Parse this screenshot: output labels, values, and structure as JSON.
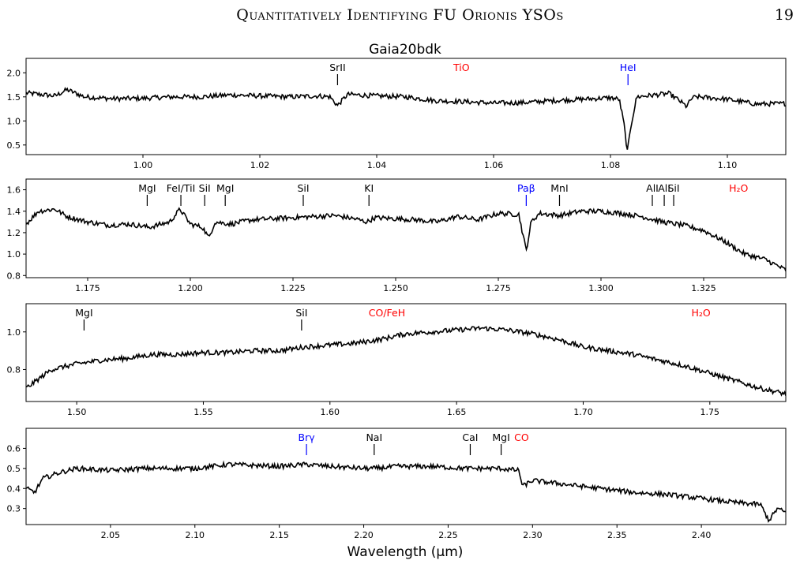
{
  "header": {
    "running_title": "Quantitatively Identifying FU Orionis YSOs",
    "page_number": "19"
  },
  "colors": {
    "black": "#000000",
    "red": "#ff0000",
    "blue": "#0000ff"
  },
  "chart_data": {
    "type": "line",
    "title": "Gaia20bdk",
    "xlabel": "Wavelength (μm)",
    "grid": false,
    "panels": [
      {
        "xlim": [
          0.98,
          1.11
        ],
        "ylim": [
          0.3,
          2.3
        ],
        "xticks": [
          1.0,
          1.02,
          1.04,
          1.06,
          1.08,
          1.1
        ],
        "xtick_labels": [
          "1.00",
          "1.02",
          "1.04",
          "1.06",
          "1.08",
          "1.10"
        ],
        "yticks": [
          0.5,
          1.0,
          1.5,
          2.0
        ],
        "ytick_labels": [
          "0.5",
          "1.0",
          "1.5",
          "2.0"
        ],
        "points": [
          [
            0.98,
            1.58
          ],
          [
            0.985,
            1.52
          ],
          [
            0.987,
            1.65
          ],
          [
            0.99,
            1.5
          ],
          [
            0.995,
            1.46
          ],
          [
            1.0,
            1.47
          ],
          [
            1.005,
            1.5
          ],
          [
            1.01,
            1.5
          ],
          [
            1.015,
            1.54
          ],
          [
            1.02,
            1.52
          ],
          [
            1.025,
            1.5
          ],
          [
            1.03,
            1.52
          ],
          [
            1.032,
            1.5
          ],
          [
            1.0333,
            1.32
          ],
          [
            1.035,
            1.55
          ],
          [
            1.04,
            1.52
          ],
          [
            1.045,
            1.5
          ],
          [
            1.05,
            1.42
          ],
          [
            1.055,
            1.4
          ],
          [
            1.06,
            1.37
          ],
          [
            1.065,
            1.38
          ],
          [
            1.07,
            1.42
          ],
          [
            1.075,
            1.45
          ],
          [
            1.08,
            1.48
          ],
          [
            1.0815,
            1.45
          ],
          [
            1.0823,
            0.95
          ],
          [
            1.0829,
            0.35
          ],
          [
            1.0835,
            0.9
          ],
          [
            1.0845,
            1.5
          ],
          [
            1.09,
            1.57
          ],
          [
            1.0915,
            1.45
          ],
          [
            1.093,
            1.3
          ],
          [
            1.094,
            1.48
          ],
          [
            1.095,
            1.5
          ],
          [
            1.1,
            1.45
          ],
          [
            1.105,
            1.35
          ],
          [
            1.11,
            1.36
          ]
        ],
        "lines": [
          {
            "label": "SrII",
            "x": 1.0333,
            "color": "black"
          },
          {
            "label": "HeI",
            "x": 1.083,
            "color": "blue"
          }
        ],
        "bands": [
          {
            "label": "TiO",
            "x": 1.0545,
            "color": "red"
          }
        ]
      },
      {
        "xlim": [
          1.16,
          1.345
        ],
        "ylim": [
          0.78,
          1.7
        ],
        "xticks": [
          1.175,
          1.2,
          1.225,
          1.25,
          1.275,
          1.3,
          1.325
        ],
        "xtick_labels": [
          "1.175",
          "1.200",
          "1.225",
          "1.250",
          "1.275",
          "1.300",
          "1.325"
        ],
        "yticks": [
          0.8,
          1.0,
          1.2,
          1.4,
          1.6
        ],
        "ytick_labels": [
          "0.8",
          "1.0",
          "1.2",
          "1.4",
          "1.6"
        ],
        "points": [
          [
            1.16,
            1.28
          ],
          [
            1.163,
            1.4
          ],
          [
            1.167,
            1.42
          ],
          [
            1.17,
            1.35
          ],
          [
            1.175,
            1.3
          ],
          [
            1.18,
            1.27
          ],
          [
            1.185,
            1.28
          ],
          [
            1.19,
            1.25
          ],
          [
            1.195,
            1.3
          ],
          [
            1.1975,
            1.42
          ],
          [
            1.2,
            1.28
          ],
          [
            1.203,
            1.25
          ],
          [
            1.2045,
            1.15
          ],
          [
            1.206,
            1.3
          ],
          [
            1.21,
            1.28
          ],
          [
            1.215,
            1.32
          ],
          [
            1.22,
            1.33
          ],
          [
            1.225,
            1.34
          ],
          [
            1.23,
            1.35
          ],
          [
            1.235,
            1.36
          ],
          [
            1.24,
            1.33
          ],
          [
            1.243,
            1.3
          ],
          [
            1.245,
            1.34
          ],
          [
            1.25,
            1.33
          ],
          [
            1.255,
            1.32
          ],
          [
            1.26,
            1.3
          ],
          [
            1.265,
            1.35
          ],
          [
            1.27,
            1.32
          ],
          [
            1.275,
            1.38
          ],
          [
            1.28,
            1.37
          ],
          [
            1.2818,
            1.03
          ],
          [
            1.283,
            1.3
          ],
          [
            1.285,
            1.38
          ],
          [
            1.29,
            1.36
          ],
          [
            1.295,
            1.4
          ],
          [
            1.3,
            1.4
          ],
          [
            1.305,
            1.38
          ],
          [
            1.31,
            1.35
          ],
          [
            1.315,
            1.3
          ],
          [
            1.32,
            1.27
          ],
          [
            1.325,
            1.22
          ],
          [
            1.33,
            1.12
          ],
          [
            1.335,
            1.0
          ],
          [
            1.34,
            0.95
          ],
          [
            1.345,
            0.85
          ]
        ],
        "lines": [
          {
            "label": "MgI",
            "x": 1.1895,
            "color": "black"
          },
          {
            "label": "FeI/TiI",
            "x": 1.1977,
            "color": "black"
          },
          {
            "label": "SiI",
            "x": 1.2035,
            "color": "black"
          },
          {
            "label": "MgI",
            "x": 1.2085,
            "color": "black"
          },
          {
            "label": "SiI",
            "x": 1.2275,
            "color": "black"
          },
          {
            "label": "KI",
            "x": 1.2435,
            "color": "black"
          },
          {
            "label": "Paβ",
            "x": 1.2818,
            "color": "blue"
          },
          {
            "label": "MnI",
            "x": 1.2899,
            "color": "black"
          },
          {
            "label": "AlI",
            "x": 1.3125,
            "color": "black"
          },
          {
            "label": "AlI",
            "x": 1.3154,
            "color": "black"
          },
          {
            "label": "SiI",
            "x": 1.3177,
            "color": "black"
          }
        ],
        "bands": [
          {
            "label": "H₂O",
            "x": 1.3335,
            "color": "red"
          }
        ]
      },
      {
        "xlim": [
          1.48,
          1.78
        ],
        "ylim": [
          0.63,
          1.15
        ],
        "xticks": [
          1.5,
          1.55,
          1.6,
          1.65,
          1.7,
          1.75
        ],
        "xtick_labels": [
          "1.50",
          "1.55",
          "1.60",
          "1.65",
          "1.70",
          "1.75"
        ],
        "yticks": [
          0.8,
          1.0
        ],
        "ytick_labels": [
          "0.8",
          "1.0"
        ],
        "points": [
          [
            1.48,
            0.7
          ],
          [
            1.49,
            0.8
          ],
          [
            1.5,
            0.83
          ],
          [
            1.51,
            0.85
          ],
          [
            1.52,
            0.86
          ],
          [
            1.53,
            0.88
          ],
          [
            1.54,
            0.88
          ],
          [
            1.55,
            0.89
          ],
          [
            1.56,
            0.89
          ],
          [
            1.57,
            0.9
          ],
          [
            1.58,
            0.9
          ],
          [
            1.59,
            0.92
          ],
          [
            1.6,
            0.93
          ],
          [
            1.61,
            0.94
          ],
          [
            1.62,
            0.96
          ],
          [
            1.63,
            0.99
          ],
          [
            1.64,
            1.0
          ],
          [
            1.65,
            1.01
          ],
          [
            1.66,
            1.02
          ],
          [
            1.67,
            1.01
          ],
          [
            1.68,
            0.99
          ],
          [
            1.69,
            0.96
          ],
          [
            1.7,
            0.92
          ],
          [
            1.71,
            0.9
          ],
          [
            1.72,
            0.88
          ],
          [
            1.73,
            0.85
          ],
          [
            1.74,
            0.82
          ],
          [
            1.75,
            0.78
          ],
          [
            1.76,
            0.74
          ],
          [
            1.77,
            0.7
          ],
          [
            1.78,
            0.67
          ]
        ],
        "lines": [
          {
            "label": "MgI",
            "x": 1.5029,
            "color": "black"
          },
          {
            "label": "SiI",
            "x": 1.5888,
            "color": "black"
          }
        ],
        "bands": [
          {
            "label": "CO/FeH",
            "x": 1.6225,
            "color": "red"
          },
          {
            "label": "H₂O",
            "x": 1.7465,
            "color": "red"
          }
        ]
      },
      {
        "xlim": [
          2.0,
          2.45
        ],
        "ylim": [
          0.22,
          0.7
        ],
        "xticks": [
          2.05,
          2.1,
          2.15,
          2.2,
          2.25,
          2.3,
          2.35,
          2.4
        ],
        "xtick_labels": [
          "2.05",
          "2.10",
          "2.15",
          "2.20",
          "2.25",
          "2.30",
          "2.35",
          "2.40"
        ],
        "yticks": [
          0.3,
          0.4,
          0.5,
          0.6
        ],
        "ytick_labels": [
          "0.3",
          "0.4",
          "0.5",
          "0.6"
        ],
        "points": [
          [
            2.0,
            0.4
          ],
          [
            2.005,
            0.38
          ],
          [
            2.01,
            0.45
          ],
          [
            2.02,
            0.48
          ],
          [
            2.03,
            0.5
          ],
          [
            2.05,
            0.49
          ],
          [
            2.07,
            0.5
          ],
          [
            2.1,
            0.5
          ],
          [
            2.12,
            0.52
          ],
          [
            2.15,
            0.51
          ],
          [
            2.166,
            0.52
          ],
          [
            2.18,
            0.51
          ],
          [
            2.2,
            0.5
          ],
          [
            2.206,
            0.5
          ],
          [
            2.22,
            0.51
          ],
          [
            2.24,
            0.51
          ],
          [
            2.26,
            0.5
          ],
          [
            2.28,
            0.5
          ],
          [
            2.292,
            0.49
          ],
          [
            2.294,
            0.41
          ],
          [
            2.3,
            0.44
          ],
          [
            2.31,
            0.43
          ],
          [
            2.32,
            0.42
          ],
          [
            2.34,
            0.4
          ],
          [
            2.36,
            0.38
          ],
          [
            2.38,
            0.37
          ],
          [
            2.4,
            0.35
          ],
          [
            2.42,
            0.33
          ],
          [
            2.435,
            0.32
          ],
          [
            2.44,
            0.24
          ],
          [
            2.445,
            0.3
          ],
          [
            2.45,
            0.28
          ]
        ],
        "lines": [
          {
            "label": "Brγ",
            "x": 2.1661,
            "color": "blue"
          },
          {
            "label": "NaI",
            "x": 2.2062,
            "color": "black"
          },
          {
            "label": "CaI",
            "x": 2.2631,
            "color": "black"
          },
          {
            "label": "MgI",
            "x": 2.2814,
            "color": "black"
          }
        ],
        "bands": [
          {
            "label": "CO",
            "x": 2.2935,
            "color": "red"
          }
        ]
      }
    ]
  }
}
